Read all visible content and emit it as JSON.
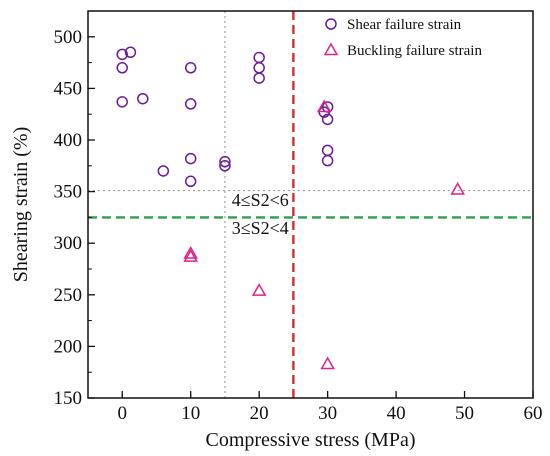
{
  "chart_data": {
    "type": "scatter",
    "xlabel": "Compressive stress (MPa)",
    "ylabel": "Shearing strain (%)",
    "xlim": [
      -5,
      60
    ],
    "ylim": [
      150,
      525
    ],
    "x_ticks": [
      0,
      10,
      20,
      30,
      40,
      50,
      60
    ],
    "y_ticks": [
      150,
      200,
      250,
      300,
      350,
      400,
      450,
      500
    ],
    "grid": false,
    "legend_position": "top-right",
    "series": [
      {
        "name": "Shear failure strain",
        "marker": "circle",
        "color": "#6a1b9a",
        "points": [
          [
            0,
            483
          ],
          [
            0,
            470
          ],
          [
            0,
            437
          ],
          [
            1.2,
            485
          ],
          [
            3,
            440
          ],
          [
            6,
            370
          ],
          [
            10,
            470
          ],
          [
            10,
            435
          ],
          [
            10,
            382
          ],
          [
            10,
            360
          ],
          [
            15,
            379
          ],
          [
            15,
            375
          ],
          [
            20,
            480
          ],
          [
            20,
            470
          ],
          [
            20,
            460
          ],
          [
            29.5,
            427
          ],
          [
            30,
            432
          ],
          [
            30,
            420
          ],
          [
            30,
            390
          ],
          [
            30,
            380
          ]
        ]
      },
      {
        "name": "Buckling failure strain",
        "marker": "triangle",
        "color": "#e0218a",
        "points": [
          [
            10,
            290
          ],
          [
            10,
            287
          ],
          [
            20,
            254
          ],
          [
            29.5,
            432
          ],
          [
            30,
            183
          ],
          [
            49,
            352
          ]
        ]
      }
    ],
    "reference_lines": [
      {
        "orientation": "vertical",
        "value": 15,
        "style": "dotted",
        "color": "#9e9e9e"
      },
      {
        "orientation": "vertical",
        "value": 25,
        "style": "dashed",
        "color": "#d32f2f"
      },
      {
        "orientation": "horizontal",
        "value": 351,
        "style": "dotted",
        "color": "#9e9e9e"
      },
      {
        "orientation": "horizontal",
        "value": 325,
        "style": "dashed",
        "color": "#2e9e4f"
      }
    ],
    "annotations": [
      "4≤S2<6",
      "3≤S2<4"
    ]
  }
}
